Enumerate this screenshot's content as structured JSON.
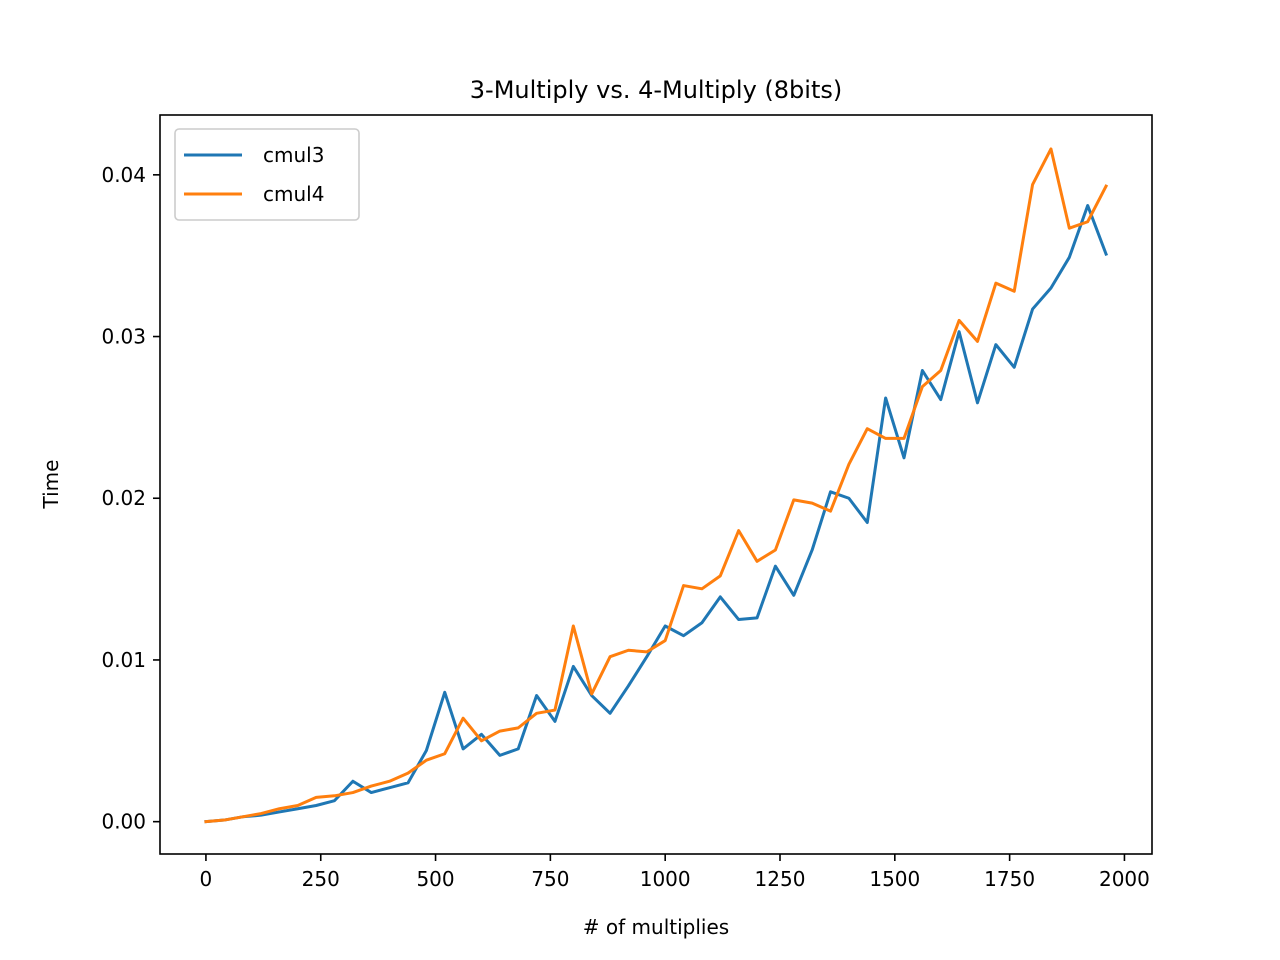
{
  "chart_data": {
    "type": "line",
    "title": "3-Multiply vs. 4-Multiply (8bits)",
    "xlabel": "# of multiplies",
    "ylabel": "Time",
    "xlim": [
      -100,
      2060
    ],
    "ylim": [
      -0.002,
      0.0437
    ],
    "xticks": [
      0,
      250,
      500,
      750,
      1000,
      1250,
      1500,
      1750,
      2000
    ],
    "xtick_labels": [
      "0",
      "250",
      "500",
      "750",
      "1000",
      "1250",
      "1500",
      "1750",
      "2000"
    ],
    "yticks": [
      0.0,
      0.01,
      0.02,
      0.03,
      0.04
    ],
    "ytick_labels": [
      "0.00",
      "0.01",
      "0.02",
      "0.03",
      "0.04"
    ],
    "grid": false,
    "legend_position": "top-left",
    "x": [
      0,
      40,
      80,
      120,
      160,
      200,
      240,
      280,
      320,
      360,
      400,
      440,
      480,
      520,
      560,
      600,
      640,
      680,
      720,
      760,
      800,
      840,
      880,
      920,
      960,
      1000,
      1040,
      1080,
      1120,
      1160,
      1200,
      1240,
      1280,
      1320,
      1360,
      1400,
      1440,
      1480,
      1520,
      1560,
      1600,
      1640,
      1680,
      1720,
      1760,
      1800,
      1840,
      1880,
      1920,
      1960
    ],
    "series": [
      {
        "name": "cmul3",
        "color": "#1f77b4",
        "values": [
          0.0,
          0.0001,
          0.0003,
          0.0004,
          0.0006,
          0.0008,
          0.001,
          0.0013,
          0.0025,
          0.0018,
          0.0021,
          0.0024,
          0.0044,
          0.008,
          0.0045,
          0.0054,
          0.0041,
          0.0045,
          0.0078,
          0.0062,
          0.0096,
          0.0078,
          0.0067,
          0.0084,
          0.0102,
          0.0121,
          0.0115,
          0.0123,
          0.0139,
          0.0125,
          0.0126,
          0.0158,
          0.014,
          0.0168,
          0.0204,
          0.02,
          0.0185,
          0.0262,
          0.0225,
          0.0279,
          0.0261,
          0.0303,
          0.0259,
          0.0295,
          0.0281,
          0.0317,
          0.033,
          0.0349,
          0.0381,
          0.0351
        ]
      },
      {
        "name": "cmul4",
        "color": "#ff7f0e",
        "values": [
          0.0,
          0.0001,
          0.0003,
          0.0005,
          0.0008,
          0.001,
          0.0015,
          0.0016,
          0.0018,
          0.0022,
          0.0025,
          0.003,
          0.0038,
          0.0042,
          0.0064,
          0.005,
          0.0056,
          0.0058,
          0.0067,
          0.0069,
          0.0121,
          0.0079,
          0.0102,
          0.0106,
          0.0105,
          0.0112,
          0.0146,
          0.0144,
          0.0152,
          0.018,
          0.0161,
          0.0168,
          0.0199,
          0.0197,
          0.0192,
          0.0221,
          0.0243,
          0.0237,
          0.0237,
          0.0269,
          0.0279,
          0.031,
          0.0297,
          0.0333,
          0.0328,
          0.0394,
          0.0416,
          0.0367,
          0.0371,
          0.0393
        ]
      }
    ]
  }
}
